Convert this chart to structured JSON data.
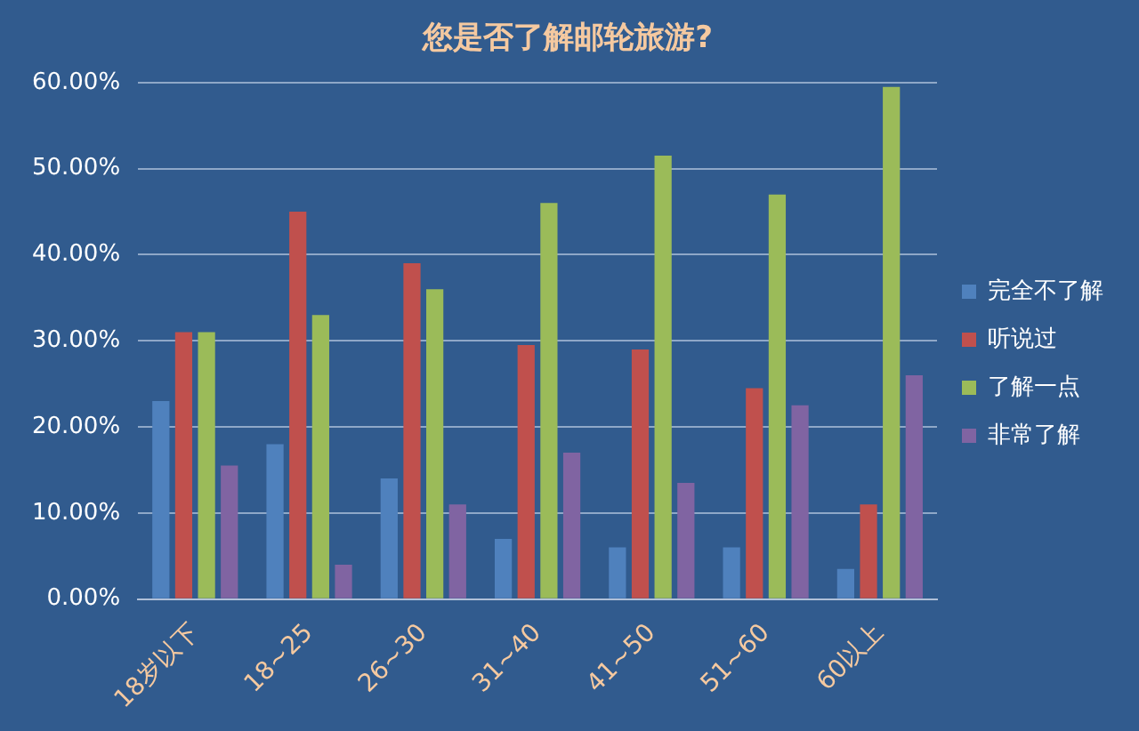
{
  "chart_data": {
    "type": "bar",
    "title": "您是否了解邮轮旅游?",
    "categories": [
      "18岁以下",
      "18~25",
      "26~30",
      "31~40",
      "41~50",
      "51~60",
      "60以上"
    ],
    "series": [
      {
        "name": "完全不了解",
        "color": "#4f81bd",
        "values": [
          23,
          18,
          14,
          7,
          6,
          6,
          3.5
        ]
      },
      {
        "name": "听说过",
        "color": "#c0504d",
        "values": [
          31,
          45,
          39,
          29.5,
          29,
          24.5,
          11
        ]
      },
      {
        "name": "了解一点",
        "color": "#9bbb59",
        "values": [
          31,
          33,
          36,
          46,
          51.5,
          47,
          59.5
        ]
      },
      {
        "name": "非常了解",
        "color": "#8064a2",
        "values": [
          15.5,
          4,
          11,
          17,
          13.5,
          22.5,
          26
        ]
      }
    ],
    "ylim": [
      0,
      60
    ],
    "yticks": [
      {
        "value": 0,
        "label": "0.00%"
      },
      {
        "value": 10,
        "label": "10.00%"
      },
      {
        "value": 20,
        "label": "20.00%"
      },
      {
        "value": 30,
        "label": "30.00%"
      },
      {
        "value": 40,
        "label": "40.00%"
      },
      {
        "value": 50,
        "label": "50.00%"
      },
      {
        "value": 60,
        "label": "60.00%"
      }
    ],
    "grid": "y",
    "legend": "right"
  }
}
